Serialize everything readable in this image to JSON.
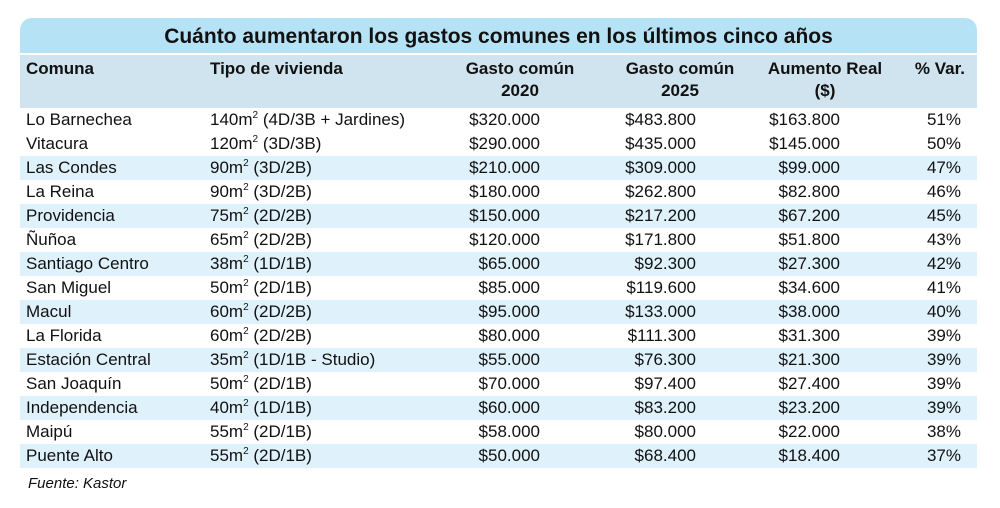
{
  "chart_data": {
    "type": "table",
    "title": "Cuánto aumentaron los gastos comunes en los últimos cinco años",
    "columns": [
      "Comuna",
      "Tipo de vivienda",
      "Gasto común 2020",
      "Gasto común 2025",
      "Aumento Real ($)",
      "% Var."
    ],
    "rows": [
      [
        "Lo Barnechea",
        "140m² (4D/3B + Jardines)",
        "$320.000",
        "$483.800",
        "$163.800",
        "51%"
      ],
      [
        "Vitacura",
        "120m² (3D/3B)",
        "$290.000",
        "$435.000",
        "$145.000",
        "50%"
      ],
      [
        "Las Condes",
        "90m² (3D/2B)",
        "$210.000",
        "$309.000",
        "$99.000",
        "47%"
      ],
      [
        "La Reina",
        "90m² (3D/2B)",
        "$180.000",
        "$262.800",
        "$82.800",
        "46%"
      ],
      [
        "Providencia",
        "75m² (2D/2B)",
        "$150.000",
        "$217.200",
        "$67.200",
        "45%"
      ],
      [
        "Ñuñoa",
        "65m² (2D/2B)",
        "$120.000",
        "$171.800",
        "$51.800",
        "43%"
      ],
      [
        "Santiago Centro",
        "38m² (1D/1B)",
        "$65.000",
        "$92.300",
        "$27.300",
        "42%"
      ],
      [
        "San Miguel",
        "50m² (2D/1B)",
        "$85.000",
        "$119.600",
        "$34.600",
        "41%"
      ],
      [
        "Macul",
        "60m² (2D/2B)",
        "$95.000",
        "$133.000",
        "$38.000",
        "40%"
      ],
      [
        "La Florida",
        "60m² (2D/2B)",
        "$80.000",
        "$111.300",
        "$31.300",
        "39%"
      ],
      [
        "Estación Central",
        "35m² (1D/1B - Studio)",
        "$55.000",
        "$76.300",
        "$21.300",
        "39%"
      ],
      [
        "San Joaquín",
        "50m² (2D/1B)",
        "$70.000",
        "$97.400",
        "$27.400",
        "39%"
      ],
      [
        "Independencia",
        "40m² (1D/1B)",
        "$60.000",
        "$83.200",
        "$23.200",
        "39%"
      ],
      [
        "Maipú",
        "55m² (2D/1B)",
        "$58.000",
        "$80.000",
        "$22.000",
        "38%"
      ],
      [
        "Puente Alto",
        "55m² (2D/1B)",
        "$50.000",
        "$68.400",
        "$18.400",
        "37%"
      ]
    ],
    "source": "Fuente: Kastor"
  },
  "colors": {
    "title_bg": "#b6e2f5",
    "header_bg": "#cfe4ee",
    "stripe": "#dff1fa"
  }
}
